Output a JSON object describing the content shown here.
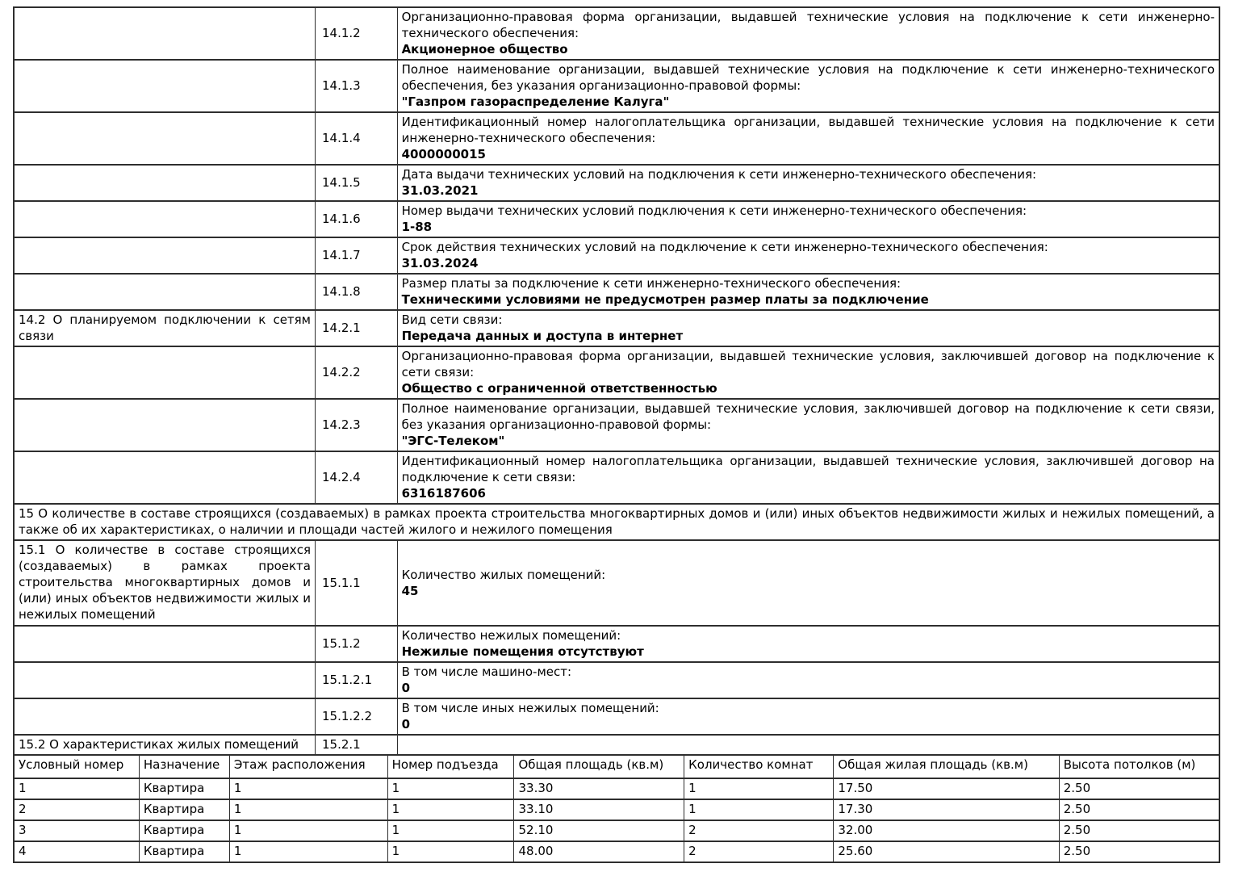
{
  "colors": {
    "background": "#ffffff",
    "border": "#2e2e2e",
    "text": "#000000"
  },
  "declaration_table": {
    "rows": [
      {
        "section": "",
        "num": "14.1.2",
        "label": "Организационно-правовая форма организации, выдавшей технические условия на подключение к сети инженерно-технического обеспечения:",
        "value": "Акционерное общество"
      },
      {
        "section": "",
        "num": "14.1.3",
        "label": "Полное наименование организации, выдавшей технические условия на подключение к сети инженерно-технического обеспечения, без указания организационно-правовой формы:",
        "value": "\"Газпром газораспределение Калуга\""
      },
      {
        "section": "",
        "num": "14.1.4",
        "label": "Идентификационный номер налогоплательщика организации, выдавшей технические условия на подключение к сети инженерно-технического обеспечения:",
        "value": "4000000015"
      },
      {
        "section": "",
        "num": "14.1.5",
        "label": "Дата выдачи технических условий на подключения к сети инженерно-технического обеспечения:",
        "value": "31.03.2021"
      },
      {
        "section": "",
        "num": "14.1.6",
        "label": "Номер выдачи технических условий подключения к сети инженерно-технического обеспечения:",
        "value": "1-88"
      },
      {
        "section": "",
        "num": "14.1.7",
        "label": "Срок действия технических условий на подключение к сети инженерно-технического обеспечения:",
        "value": "31.03.2024"
      },
      {
        "section": "",
        "num": "14.1.8",
        "label": "Размер платы за подключение к сети инженерно-технического обеспечения:",
        "value": "Техническими условиями не предусмотрен размер платы за подключение"
      },
      {
        "section": "14.2 О планируемом подключении к сетям связи",
        "num": "14.2.1",
        "label": "Вид сети связи:",
        "value": "Передача данных и доступа в интернет"
      },
      {
        "section": "",
        "num": "14.2.2",
        "label": "Организационно-правовая форма организации, выдавшей технические условия, заключившей договор на подключение к сети связи:",
        "value": "Общество с ограниченной ответственностью"
      },
      {
        "section": "",
        "num": "14.2.3",
        "label": "Полное наименование организации, выдавшей технические условия, заключившей договор на подключение к сети связи, без указания организационно-правовой формы:",
        "value": "\"ЭГС-Телеком\""
      },
      {
        "section": "",
        "num": "14.2.4",
        "label": "Идентификационный номер налогоплательщика организации, выдавшей технические условия, заключившей договор на подключение к сети связи:",
        "value": "6316187606"
      },
      {
        "header": "15 О количестве в составе строящихся (создаваемых) в рамках проекта строительства многоквартирных домов и (или) иных объектов недвижимости жилых и нежилых помещений, а также об их характеристиках, о наличии и площади частей жилого и нежилого помещения"
      },
      {
        "section": "15.1 О количестве в составе строящихся (создаваемых) в рамках проекта строительства многоквартирных домов и (или) иных объектов недвижимости жилых и нежилых помещений",
        "num": "15.1.1",
        "label": "Количество жилых помещений:",
        "value": "45"
      },
      {
        "section": "",
        "num": "15.1.2",
        "label": "Количество нежилых помещений:",
        "value": "Нежилые помещения отсутствуют"
      },
      {
        "section": "",
        "num": "15.1.2.1",
        "label": "В том числе машино-мест:",
        "value": "0"
      },
      {
        "section": "",
        "num": "15.1.2.2",
        "label": "В том числе иных нежилых помещений:",
        "value": "0"
      },
      {
        "section": "15.2 О характеристиках жилых помещений",
        "num": "15.2.1",
        "label": "",
        "value": ""
      }
    ]
  },
  "apartments_table": {
    "headers": [
      "Условный номер",
      "Назначение",
      "Этаж расположения",
      "Номер подъезда",
      "Общая площадь (кв.м)",
      "Количество комнат",
      "Общая жилая площадь (кв.м)",
      "Высота потолков (м)"
    ],
    "rows": [
      [
        "1",
        "Квартира",
        "1",
        "1",
        "33.30",
        "1",
        "17.50",
        "2.50"
      ],
      [
        "2",
        "Квартира",
        "1",
        "1",
        "33.10",
        "1",
        "17.30",
        "2.50"
      ],
      [
        "3",
        "Квартира",
        "1",
        "1",
        "52.10",
        "2",
        "32.00",
        "2.50"
      ],
      [
        "4",
        "Квартира",
        "1",
        "1",
        "48.00",
        "2",
        "25.60",
        "2.50"
      ]
    ]
  }
}
